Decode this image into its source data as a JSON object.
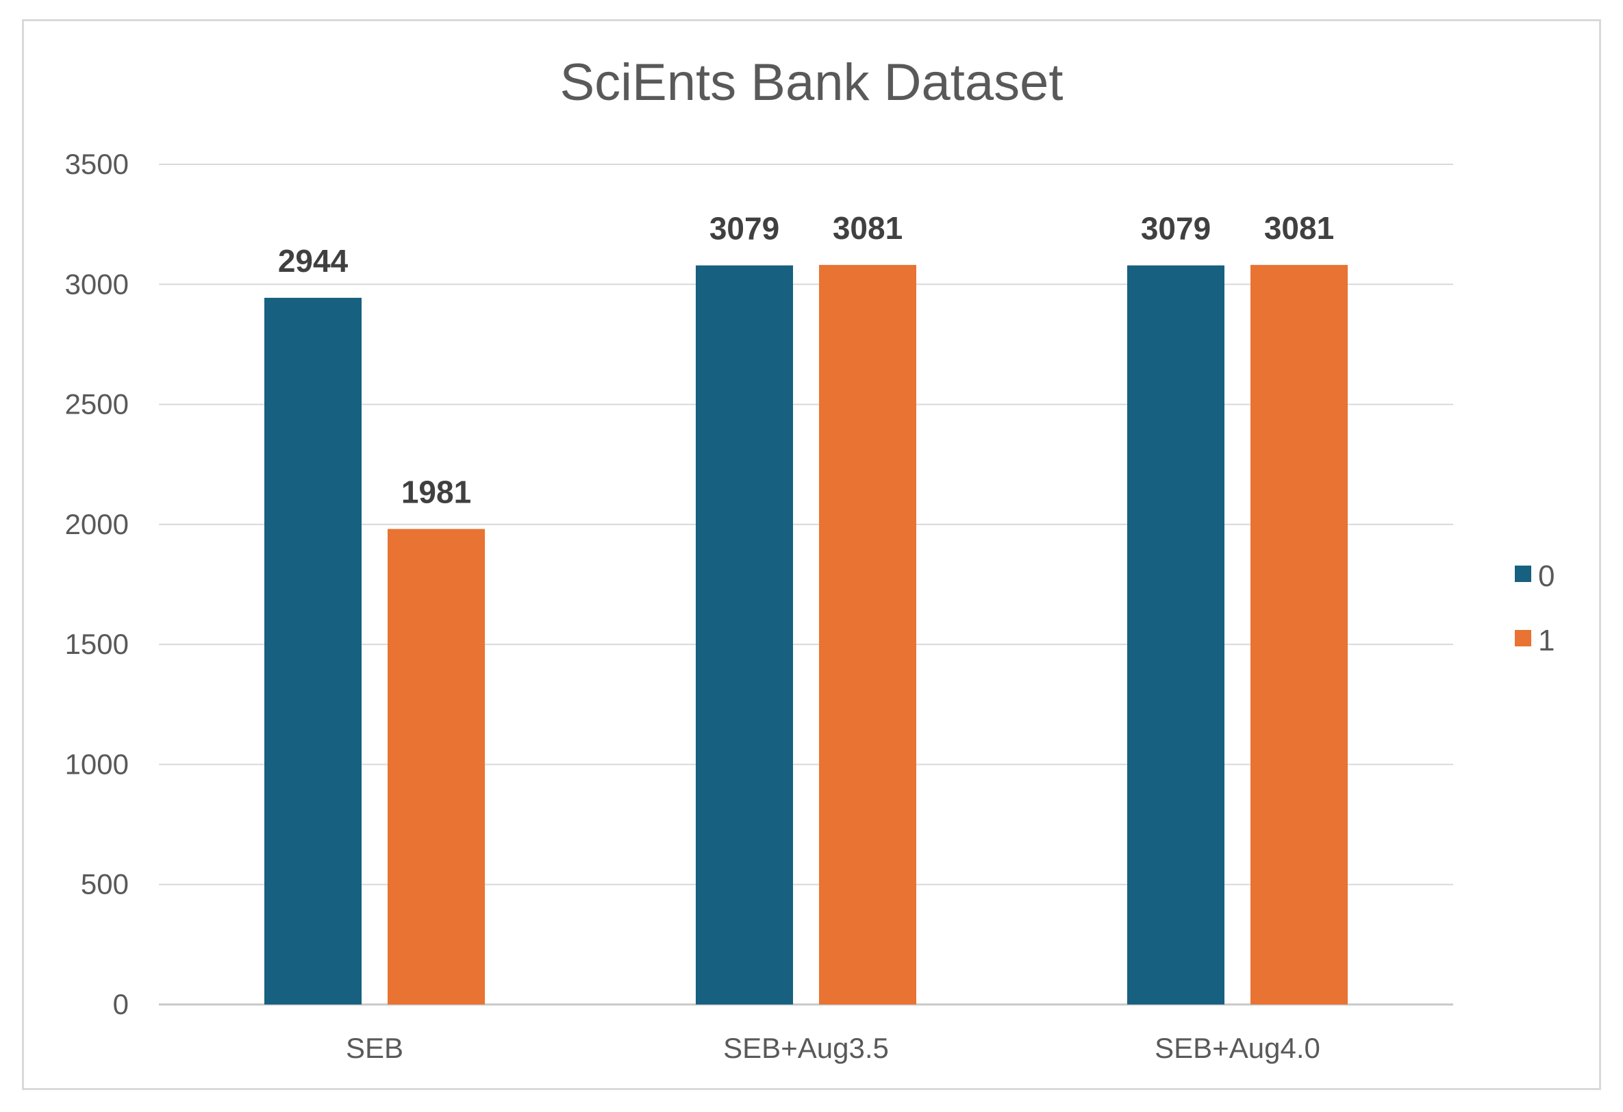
{
  "chart_data": {
    "type": "bar",
    "title": "SciEnts Bank Dataset",
    "xlabel": "",
    "ylabel": "",
    "categories": [
      "SEB",
      "SEB+Aug3.5",
      "SEB+Aug4.0"
    ],
    "series": [
      {
        "name": "0",
        "color": "#17607f",
        "values": [
          2944,
          3079,
          3079
        ]
      },
      {
        "name": "1",
        "color": "#e87332",
        "values": [
          1981,
          3081,
          3081
        ]
      }
    ],
    "ylim": [
      0,
      3500
    ],
    "yticks": [
      0,
      500,
      1000,
      1500,
      2000,
      2500,
      3000,
      3500
    ],
    "grid": true,
    "legend_position": "right",
    "data_labels": true
  }
}
